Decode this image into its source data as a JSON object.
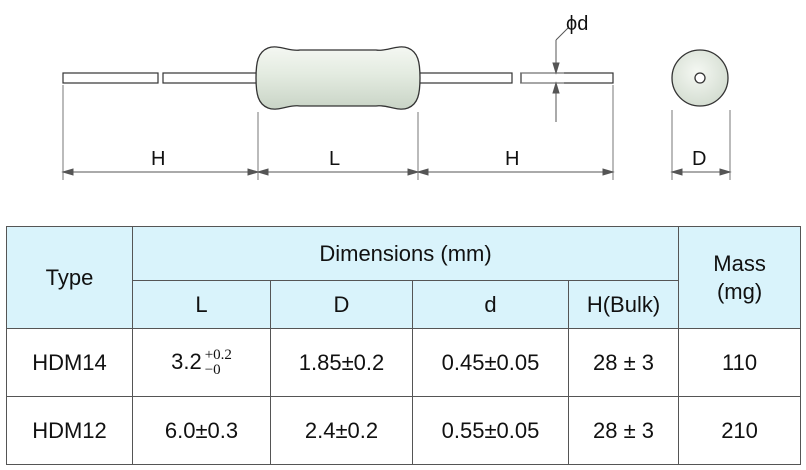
{
  "diagram": {
    "dim_phi_d": "ϕd",
    "dim_H_left": "H",
    "dim_L": "L",
    "dim_H_right": "H",
    "dim_D": "D"
  },
  "table": {
    "type_header": "Type",
    "dimensions_header": "Dimensions (mm)",
    "mass_header": "Mass (mg)",
    "columns": [
      "L",
      "D",
      "d",
      "H(Bulk)"
    ],
    "rows": [
      {
        "type": "HDM14",
        "L_main": "3.2",
        "L_tol_plus": "+0.2",
        "L_tol_minus": "−0",
        "D": "1.85±0.2",
        "d": "0.45±0.05",
        "H": "28 ± 3",
        "mass": "110"
      },
      {
        "type": "HDM12",
        "L": "6.0±0.3",
        "D": "2.4±0.2",
        "d": "0.55±0.05",
        "H": "28 ± 3",
        "mass": "210"
      }
    ]
  },
  "colors": {
    "header_bg": "#d9f3fb",
    "body_fill": "#e6ede3",
    "line": "#555555"
  }
}
